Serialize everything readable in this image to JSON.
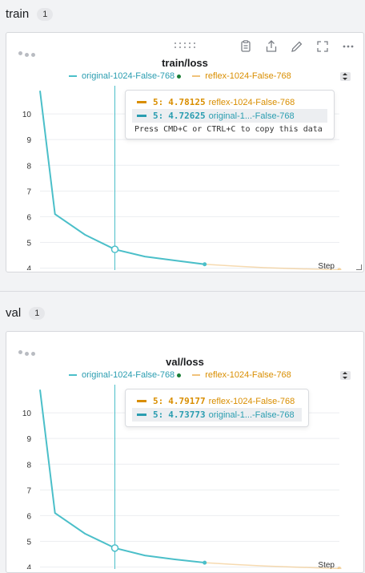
{
  "colors": {
    "original": "#4bbfc9",
    "reflex": "#f0c27b",
    "reflex_text": "#d98e00",
    "original_text": "#2a9db0"
  },
  "sections": [
    {
      "name": "train",
      "count": "1",
      "panel": {
        "title": "train/loss",
        "legend": [
          "original-1024-False-768",
          "reflex-1024-False-768"
        ],
        "tooltip": {
          "rows": [
            {
              "step": "5:",
              "value": "4.78125",
              "label": "reflex-1024-False-768",
              "series": "reflex"
            },
            {
              "step": "5:",
              "value": "4.72625",
              "label": "original-1...-False-768",
              "series": "original"
            }
          ],
          "copy_hint": "Press CMD+C or CTRL+C to copy this data"
        }
      }
    },
    {
      "name": "val",
      "count": "1",
      "panel": {
        "title": "val/loss",
        "legend": [
          "original-1024-False-768",
          "reflex-1024-False-768"
        ],
        "tooltip": {
          "rows": [
            {
              "step": "5:",
              "value": "4.79177",
              "label": "reflex-1024-False-768",
              "series": "reflex"
            },
            {
              "step": "5:",
              "value": "4.73773",
              "label": "original-1...-False-768",
              "series": "original"
            }
          ],
          "copy_hint": ""
        }
      }
    }
  ],
  "toolbar": [
    "clipboard-icon",
    "share-icon",
    "edit-icon",
    "fullscreen-icon",
    "more-icon"
  ],
  "chart_data": [
    {
      "type": "line",
      "title": "train/loss",
      "xlabel": "Step",
      "ylabel": "",
      "xlim": [
        0,
        20
      ],
      "ylim": [
        3.8,
        11
      ],
      "xticks": [
        0,
        5,
        10,
        15,
        20
      ],
      "yticks": [
        4,
        5,
        6,
        7,
        8,
        9,
        10
      ],
      "hover_step": 5,
      "series": [
        {
          "name": "original-1024-False-768",
          "x": [
            0,
            1,
            3,
            5,
            7,
            9,
            11
          ],
          "y": [
            10.9,
            6.1,
            5.3,
            4.73,
            4.45,
            4.3,
            4.15
          ]
        },
        {
          "name": "reflex-1024-False-768",
          "x": [
            11,
            13,
            15,
            17,
            19,
            20
          ],
          "y": [
            4.15,
            4.08,
            4.02,
            3.98,
            3.95,
            3.93
          ]
        }
      ]
    },
    {
      "type": "line",
      "title": "val/loss",
      "xlabel": "Step",
      "ylabel": "",
      "xlim": [
        0,
        20
      ],
      "ylim": [
        3.8,
        11
      ],
      "xticks": [
        0,
        5,
        10,
        15,
        20
      ],
      "yticks": [
        4,
        5,
        6,
        7,
        8,
        9,
        10
      ],
      "hover_step": 5,
      "series": [
        {
          "name": "original-1024-False-768",
          "x": [
            0,
            1,
            3,
            5,
            7,
            9,
            11
          ],
          "y": [
            10.9,
            6.1,
            5.3,
            4.74,
            4.45,
            4.3,
            4.17
          ]
        },
        {
          "name": "reflex-1024-False-768",
          "x": [
            11,
            13,
            15,
            17,
            19,
            20
          ],
          "y": [
            4.17,
            4.1,
            4.04,
            4.0,
            3.96,
            3.94
          ]
        }
      ]
    }
  ]
}
